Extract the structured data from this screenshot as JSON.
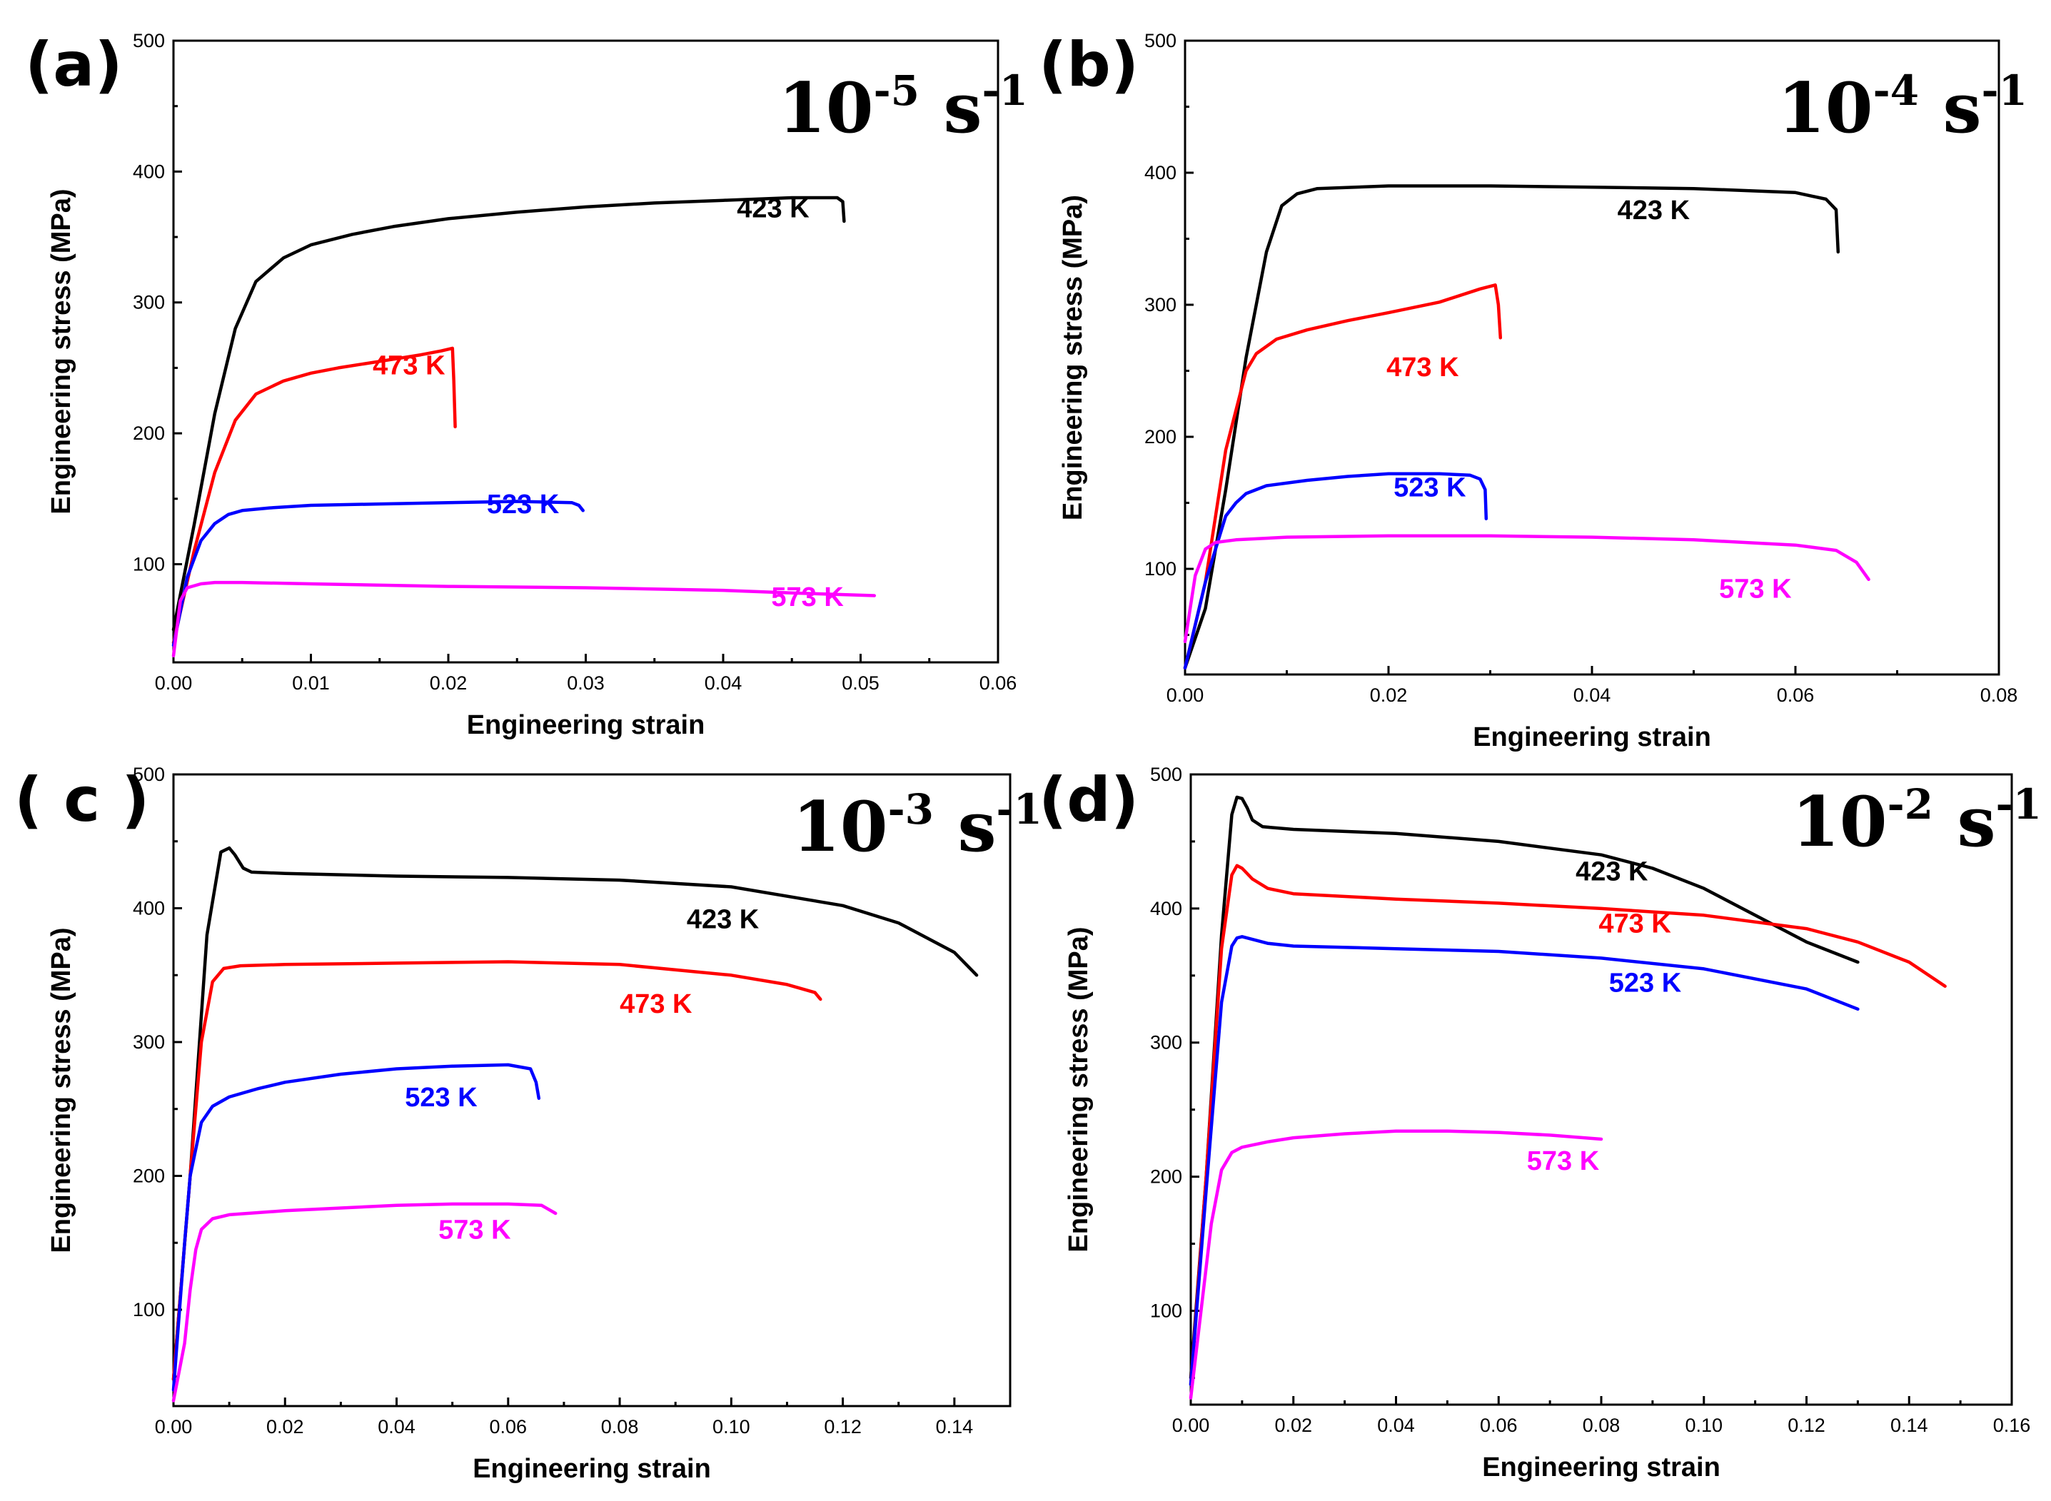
{
  "chart_data": [
    {
      "type": "line",
      "panel": "(a)",
      "rate_base": "10",
      "rate_exp": "-5",
      "rate_unit": " s",
      "rate_unit_exp": "-1",
      "xlabel": "Engineering strain",
      "ylabel": "Engineering stress (MPa)",
      "xlim": [
        0,
        0.06
      ],
      "ylim": [
        25,
        500
      ],
      "xticks": [
        0,
        0.01,
        0.02,
        0.03,
        0.04,
        0.05,
        0.06
      ],
      "xtick_labels": [
        "0.00",
        "0.01",
        "0.02",
        "0.03",
        "0.04",
        "0.05",
        "0.06"
      ],
      "yticks": [
        100,
        200,
        300,
        400,
        500
      ],
      "ytick_labels": [
        "100",
        "200",
        "300",
        "400",
        "500"
      ],
      "series": [
        {
          "name": "423 K",
          "color": "#000000",
          "label_at": [
            0.041,
            365
          ],
          "x": [
            0,
            0.0015,
            0.003,
            0.0045,
            0.006,
            0.008,
            0.01,
            0.013,
            0.016,
            0.02,
            0.025,
            0.03,
            0.035,
            0.04,
            0.045,
            0.0483,
            0.0487,
            0.0488
          ],
          "y": [
            50,
            130,
            215,
            280,
            316,
            334,
            344,
            352,
            358,
            364,
            369,
            373,
            376,
            378,
            380,
            380,
            377,
            362
          ]
        },
        {
          "name": "473 K",
          "color": "#ff0000",
          "label_at": [
            0.0145,
            245
          ],
          "x": [
            0,
            0.0015,
            0.003,
            0.0045,
            0.006,
            0.008,
            0.01,
            0.012,
            0.015,
            0.018,
            0.0195,
            0.0203,
            0.0204,
            0.0205
          ],
          "y": [
            40,
            110,
            170,
            210,
            230,
            240,
            246,
            250,
            255,
            260,
            263,
            265,
            240,
            205
          ]
        },
        {
          "name": "523 K",
          "color": "#0000ff",
          "label_at": [
            0.0228,
            139
          ],
          "x": [
            0,
            0.001,
            0.002,
            0.003,
            0.004,
            0.005,
            0.007,
            0.01,
            0.015,
            0.02,
            0.025,
            0.029,
            0.0295,
            0.0298
          ],
          "y": [
            38,
            90,
            118,
            131,
            138,
            141,
            143,
            145,
            146,
            147,
            148,
            147,
            145,
            141
          ]
        },
        {
          "name": "573 K",
          "color": "#ff00ff",
          "label_at": [
            0.0435,
            68
          ],
          "x": [
            0,
            0.0005,
            0.001,
            0.002,
            0.003,
            0.005,
            0.01,
            0.02,
            0.03,
            0.04,
            0.045,
            0.051
          ],
          "y": [
            30,
            72,
            82,
            85,
            86,
            86,
            85,
            83,
            82,
            80,
            78,
            76
          ]
        }
      ]
    },
    {
      "type": "line",
      "panel": "(b)",
      "rate_base": "10",
      "rate_exp": "-4",
      "rate_unit": " s",
      "rate_unit_exp": "-1",
      "xlabel": "Engineering strain",
      "ylabel": "Engineering stress (MPa)",
      "xlim": [
        0,
        0.08
      ],
      "ylim": [
        20,
        500
      ],
      "xticks": [
        0,
        0.02,
        0.04,
        0.06,
        0.08
      ],
      "xtick_labels": [
        "0.00",
        "0.02",
        "0.04",
        "0.06",
        "0.08"
      ],
      "yticks": [
        100,
        200,
        300,
        400,
        500
      ],
      "ytick_labels": [
        "100",
        "200",
        "300",
        "400",
        "500"
      ],
      "series": [
        {
          "name": "423 K",
          "color": "#000000",
          "label_at": [
            0.0425,
            365
          ],
          "x": [
            0,
            0.002,
            0.004,
            0.006,
            0.008,
            0.0095,
            0.011,
            0.013,
            0.02,
            0.03,
            0.04,
            0.05,
            0.06,
            0.063,
            0.064,
            0.0642
          ],
          "y": [
            25,
            70,
            160,
            260,
            340,
            375,
            384,
            388,
            390,
            390,
            389,
            388,
            385,
            380,
            372,
            340
          ]
        },
        {
          "name": "473 K",
          "color": "#ff0000",
          "label_at": [
            0.0198,
            246
          ],
          "x": [
            0,
            0.002,
            0.004,
            0.006,
            0.007,
            0.009,
            0.012,
            0.016,
            0.02,
            0.025,
            0.029,
            0.0305,
            0.0308,
            0.031
          ],
          "y": [
            25,
            90,
            190,
            250,
            263,
            274,
            281,
            288,
            294,
            302,
            312,
            315,
            300,
            275
          ]
        },
        {
          "name": "523 K",
          "color": "#0000ff",
          "label_at": [
            0.0205,
            155
          ],
          "x": [
            0,
            0.002,
            0.004,
            0.005,
            0.006,
            0.008,
            0.012,
            0.016,
            0.02,
            0.025,
            0.028,
            0.029,
            0.0295,
            0.0296
          ],
          "y": [
            25,
            90,
            140,
            150,
            157,
            163,
            167,
            170,
            172,
            172,
            171,
            168,
            160,
            138
          ]
        },
        {
          "name": "573 K",
          "color": "#ff00ff",
          "label_at": [
            0.0525,
            78
          ],
          "x": [
            0,
            0.001,
            0.002,
            0.003,
            0.005,
            0.01,
            0.02,
            0.03,
            0.04,
            0.05,
            0.06,
            0.064,
            0.066,
            0.0672
          ],
          "y": [
            45,
            95,
            115,
            120,
            122,
            124,
            125,
            125,
            124,
            122,
            118,
            114,
            105,
            92
          ]
        }
      ]
    },
    {
      "type": "line",
      "panel": "( c )",
      "rate_base": "10",
      "rate_exp": "-3",
      "rate_unit": " s",
      "rate_unit_exp": "-1",
      "xlabel": "Engineering strain",
      "ylabel": "Engineering stress (MPa)",
      "xlim": [
        0,
        0.15
      ],
      "ylim": [
        28,
        500
      ],
      "xticks": [
        0,
        0.02,
        0.04,
        0.06,
        0.08,
        0.1,
        0.12,
        0.14
      ],
      "xtick_labels": [
        "0.00",
        "0.02",
        "0.04",
        "0.06",
        "0.08",
        "0.10",
        "0.12",
        "0.14"
      ],
      "yticks": [
        100,
        200,
        300,
        400,
        500
      ],
      "ytick_labels": [
        "100",
        "200",
        "300",
        "400",
        "500"
      ],
      "series": [
        {
          "name": "423 K",
          "color": "#000000",
          "label_at": [
            0.092,
            385
          ],
          "x": [
            0,
            0.003,
            0.006,
            0.0085,
            0.01,
            0.011,
            0.0125,
            0.014,
            0.02,
            0.04,
            0.06,
            0.08,
            0.1,
            0.12,
            0.13,
            0.14,
            0.144
          ],
          "y": [
            48,
            200,
            380,
            442,
            445,
            440,
            430,
            427,
            426,
            424,
            423,
            421,
            416,
            402,
            389,
            367,
            350
          ]
        },
        {
          "name": "473 K",
          "color": "#ff0000",
          "label_at": [
            0.08,
            322
          ],
          "x": [
            0,
            0.003,
            0.005,
            0.007,
            0.009,
            0.012,
            0.02,
            0.04,
            0.06,
            0.08,
            0.1,
            0.11,
            0.115,
            0.116
          ],
          "y": [
            48,
            200,
            300,
            345,
            355,
            357,
            358,
            359,
            360,
            358,
            350,
            343,
            337,
            332
          ]
        },
        {
          "name": "523 K",
          "color": "#0000ff",
          "label_at": [
            0.0415,
            252
          ],
          "x": [
            0,
            0.002,
            0.003,
            0.005,
            0.007,
            0.01,
            0.015,
            0.02,
            0.03,
            0.04,
            0.05,
            0.06,
            0.064,
            0.065,
            0.0655
          ],
          "y": [
            40,
            150,
            200,
            240,
            252,
            259,
            265,
            270,
            276,
            280,
            282,
            283,
            280,
            270,
            258
          ]
        },
        {
          "name": "573 K",
          "color": "#ff00ff",
          "label_at": [
            0.0475,
            153
          ],
          "x": [
            0,
            0.002,
            0.003,
            0.004,
            0.005,
            0.007,
            0.01,
            0.02,
            0.03,
            0.04,
            0.05,
            0.06,
            0.066,
            0.0685
          ],
          "y": [
            32,
            75,
            115,
            145,
            160,
            168,
            171,
            174,
            176,
            178,
            179,
            179,
            178,
            172
          ]
        }
      ]
    },
    {
      "type": "line",
      "panel": "(d)",
      "rate_base": "10",
      "rate_exp": "-2",
      "rate_unit": " s",
      "rate_unit_exp": "-1",
      "xlabel": "Engineering strain",
      "ylabel": "Engineering stress (MPa)",
      "xlim": [
        0,
        0.16
      ],
      "ylim": [
        30,
        500
      ],
      "xticks": [
        0,
        0.02,
        0.04,
        0.06,
        0.08,
        0.1,
        0.12,
        0.14,
        0.16
      ],
      "xtick_labels": [
        "0.00",
        "0.02",
        "0.04",
        "0.06",
        "0.08",
        "0.10",
        "0.12",
        "0.14",
        "0.16"
      ],
      "yticks": [
        100,
        200,
        300,
        400,
        500
      ],
      "ytick_labels": [
        "100",
        "200",
        "300",
        "400",
        "500"
      ],
      "series": [
        {
          "name": "423 K",
          "color": "#000000",
          "label_at": [
            0.075,
            421
          ],
          "x": [
            0,
            0.003,
            0.006,
            0.008,
            0.009,
            0.01,
            0.011,
            0.012,
            0.014,
            0.02,
            0.04,
            0.06,
            0.08,
            0.09,
            0.1,
            0.11,
            0.12,
            0.13
          ],
          "y": [
            50,
            200,
            380,
            470,
            483,
            482,
            475,
            466,
            461,
            459,
            456,
            450,
            440,
            430,
            415,
            395,
            375,
            360
          ]
        },
        {
          "name": "473 K",
          "color": "#ff0000",
          "label_at": [
            0.0795,
            382
          ],
          "x": [
            0,
            0.003,
            0.006,
            0.008,
            0.009,
            0.01,
            0.012,
            0.015,
            0.02,
            0.04,
            0.06,
            0.08,
            0.1,
            0.12,
            0.13,
            0.14,
            0.147
          ],
          "y": [
            45,
            200,
            370,
            425,
            432,
            430,
            422,
            415,
            411,
            407,
            404,
            400,
            395,
            385,
            375,
            360,
            342
          ]
        },
        {
          "name": "523 K",
          "color": "#0000ff",
          "label_at": [
            0.0815,
            338
          ],
          "x": [
            0,
            0.003,
            0.006,
            0.008,
            0.009,
            0.01,
            0.012,
            0.015,
            0.02,
            0.04,
            0.06,
            0.08,
            0.1,
            0.12,
            0.13
          ],
          "y": [
            45,
            190,
            330,
            372,
            378,
            379,
            377,
            374,
            372,
            370,
            368,
            363,
            355,
            340,
            325
          ]
        },
        {
          "name": "573 K",
          "color": "#ff00ff",
          "label_at": [
            0.0655,
            205
          ],
          "x": [
            0,
            0.002,
            0.004,
            0.006,
            0.008,
            0.01,
            0.015,
            0.02,
            0.03,
            0.04,
            0.05,
            0.06,
            0.07,
            0.08
          ],
          "y": [
            35,
            100,
            165,
            205,
            218,
            222,
            226,
            229,
            232,
            234,
            234,
            233,
            231,
            228
          ]
        }
      ]
    }
  ]
}
